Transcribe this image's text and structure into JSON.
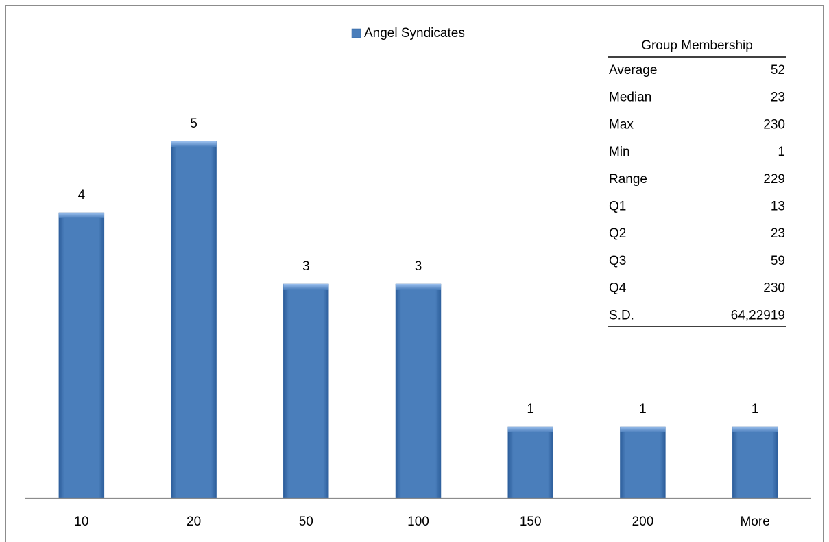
{
  "chart_data": {
    "type": "bar",
    "categories": [
      "10",
      "20",
      "50",
      "100",
      "150",
      "200",
      "More"
    ],
    "series": [
      {
        "name": "Angel Syndicates",
        "color": "#4a7ebb",
        "values": [
          4,
          5,
          3,
          3,
          1,
          1,
          1
        ]
      }
    ],
    "data_labels": true,
    "legend": "top",
    "table": {
      "title": "Group Membership",
      "rows": [
        [
          "Average",
          52
        ],
        [
          "Median",
          23
        ],
        [
          "Max",
          230
        ],
        [
          "Min",
          1
        ],
        [
          "Range",
          229
        ],
        [
          "Q1",
          13
        ],
        [
          "Q2",
          23
        ],
        [
          "Q3",
          59
        ],
        [
          "Q4",
          230
        ],
        [
          "S.D.",
          "64,22919"
        ]
      ]
    }
  }
}
